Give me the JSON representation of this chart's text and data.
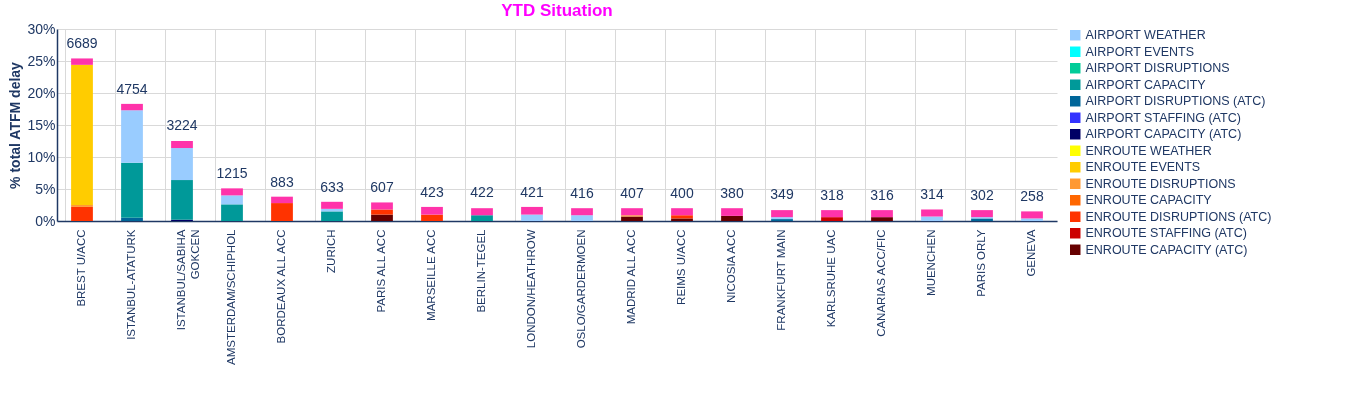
{
  "chart_data": {
    "type": "bar",
    "title": "YTD Situation",
    "ylabel": "% total ATFM delay",
    "stacked": true,
    "grid": true,
    "legend": "right",
    "categories": [
      "BREST U/ACC",
      "ISTANBUL-ATATURK",
      "ISTANBUL/SABIHA GOKCEN",
      "AMSTERDAM/SCHIPHOL",
      "BORDEAUX ALL ACC",
      "ZURICH",
      "PARIS ALL ACC",
      "MARSEILLE ACC",
      "BERLIN-TEGEL",
      "LONDON/HEATHROW",
      "OSLO/GARDERMOEN",
      "MADRID ALL ACC",
      "REIMS U/ACC",
      "NICOSIA ACC",
      "FRANKFURT MAIN",
      "KARLSRUHE UAC",
      "CANARIAS ACC/FIC",
      "MUENCHEN",
      "PARIS ORLY",
      "GENEVA"
    ],
    "ylim": [
      0,
      30
    ],
    "yticks": [
      {
        "value": 0,
        "label": "0%"
      },
      {
        "value": 5,
        "label": "5%"
      },
      {
        "value": 10,
        "label": "10%"
      },
      {
        "value": 15,
        "label": "15%"
      },
      {
        "value": 20,
        "label": "20%"
      },
      {
        "value": 25,
        "label": "25%"
      },
      {
        "value": 30,
        "label": "30%"
      }
    ],
    "annotations": [
      {
        "text": "6689",
        "x": "BREST U/ACC",
        "y": 25.5
      },
      {
        "text": "4754",
        "x": "ISTANBUL-ATATURK",
        "y": 18.3
      },
      {
        "text": "3224",
        "x": "ISTANBUL/SABIHA GOKCEN",
        "y": 12.6
      },
      {
        "text": "1215",
        "x": "AMSTERDAM/SCHIPHOL",
        "y": 5.1
      },
      {
        "text": "883",
        "x": "BORDEAUX ALL ACC",
        "y": 3.8
      },
      {
        "text": "633",
        "x": "ZURICH",
        "y": 3.0
      },
      {
        "text": "607",
        "x": "PARIS ALL ACC",
        "y": 2.9
      },
      {
        "text": "423",
        "x": "MARSEILLE ACC",
        "y": 2.2
      },
      {
        "text": "422",
        "x": "BERLIN-TEGEL",
        "y": 2.2
      },
      {
        "text": "421",
        "x": "LONDON/HEATHROW",
        "y": 2.2
      },
      {
        "text": "416",
        "x": "OSLO/GARDERMOEN",
        "y": 2.0
      },
      {
        "text": "407",
        "x": "MADRID ALL ACC",
        "y": 2.0
      },
      {
        "text": "400",
        "x": "REIMS U/ACC",
        "y": 2.0
      },
      {
        "text": "380",
        "x": "NICOSIA ACC",
        "y": 2.0
      },
      {
        "text": "349",
        "x": "FRANKFURT MAIN",
        "y": 1.9
      },
      {
        "text": "318",
        "x": "KARLSRUHE UAC",
        "y": 1.7
      },
      {
        "text": "316",
        "x": "CANARIAS ACC/FIC",
        "y": 1.7
      },
      {
        "text": "314",
        "x": "MUENCHEN",
        "y": 1.8
      },
      {
        "text": "302",
        "x": "PARIS ORLY",
        "y": 1.7
      },
      {
        "text": "258",
        "x": "GENEVA",
        "y": 1.5
      }
    ],
    "series": [
      {
        "name": "ENROUTE CAPACITY (ATC)",
        "color": "#660000",
        "values": [
          null,
          null,
          null,
          null,
          null,
          null,
          1.0,
          null,
          null,
          null,
          null,
          0.7,
          0.4,
          0.8,
          null,
          null,
          0.6,
          null,
          null,
          null
        ]
      },
      {
        "name": "ENROUTE STAFFING (ATC)",
        "color": "#cc0000",
        "values": [
          null,
          null,
          null,
          null,
          null,
          null,
          null,
          null,
          null,
          null,
          null,
          null,
          null,
          null,
          null,
          0.6,
          null,
          null,
          null,
          null
        ]
      },
      {
        "name": "ENROUTE DISRUPTIONS (ATC)",
        "color": "#ff3300",
        "values": [
          2.2,
          null,
          null,
          null,
          2.8,
          null,
          0.8,
          1.0,
          null,
          null,
          null,
          null,
          0.5,
          null,
          null,
          null,
          null,
          null,
          null,
          null
        ]
      },
      {
        "name": "ENROUTE CAPACITY",
        "color": "#ff6600",
        "values": [
          null,
          null,
          null,
          null,
          null,
          null,
          null,
          null,
          null,
          null,
          null,
          null,
          null,
          null,
          null,
          null,
          null,
          null,
          null,
          null
        ]
      },
      {
        "name": "ENROUTE DISRUPTIONS",
        "color": "#ff9933",
        "values": [
          0.3,
          null,
          null,
          null,
          null,
          null,
          null,
          null,
          null,
          null,
          null,
          0.2,
          null,
          null,
          null,
          null,
          null,
          null,
          null,
          null
        ]
      },
      {
        "name": "ENROUTE EVENTS",
        "color": "#ffcc00",
        "values": [
          21.9,
          null,
          null,
          null,
          null,
          null,
          null,
          null,
          null,
          null,
          null,
          null,
          null,
          null,
          null,
          null,
          null,
          null,
          null,
          null
        ]
      },
      {
        "name": "ENROUTE WEATHER",
        "color": "#ffff00",
        "values": [
          null,
          null,
          null,
          null,
          null,
          null,
          null,
          null,
          null,
          null,
          null,
          null,
          null,
          null,
          null,
          null,
          null,
          null,
          null,
          null
        ]
      },
      {
        "name": "AIRPORT CAPACITY (ATC)",
        "color": "#000066",
        "values": [
          null,
          null,
          0.2,
          null,
          null,
          null,
          null,
          null,
          null,
          null,
          null,
          null,
          null,
          null,
          null,
          null,
          null,
          null,
          null,
          null
        ]
      },
      {
        "name": "AIRPORT STAFFING (ATC)",
        "color": "#3333ff",
        "values": [
          null,
          null,
          null,
          null,
          null,
          null,
          null,
          null,
          null,
          null,
          null,
          null,
          null,
          null,
          null,
          null,
          null,
          null,
          null,
          null
        ]
      },
      {
        "name": "AIRPORT DISRUPTIONS (ATC)",
        "color": "#006699",
        "values": [
          null,
          0.5,
          null,
          null,
          null,
          null,
          null,
          null,
          null,
          null,
          null,
          null,
          null,
          null,
          0.3,
          null,
          null,
          null,
          0.4,
          null
        ]
      },
      {
        "name": "AIRPORT CAPACITY",
        "color": "#009999",
        "values": [
          null,
          8.6,
          6.2,
          2.6,
          null,
          1.5,
          null,
          null,
          0.9,
          null,
          null,
          null,
          null,
          null,
          null,
          null,
          null,
          null,
          null,
          null
        ]
      },
      {
        "name": "AIRPORT DISRUPTIONS",
        "color": "#00cc99",
        "values": [
          null,
          null,
          null,
          null,
          null,
          null,
          null,
          null,
          null,
          null,
          null,
          null,
          null,
          null,
          null,
          null,
          null,
          null,
          null,
          null
        ]
      },
      {
        "name": "AIRPORT EVENTS",
        "color": "#00ffff",
        "values": [
          null,
          null,
          null,
          null,
          null,
          null,
          null,
          null,
          null,
          null,
          null,
          null,
          null,
          null,
          null,
          null,
          null,
          null,
          null,
          null
        ]
      },
      {
        "name": "AIRPORT WEATHER",
        "color": "#99ccff",
        "values": [
          null,
          8.2,
          5.0,
          1.4,
          null,
          0.4,
          null,
          null,
          null,
          1.0,
          0.9,
          null,
          null,
          null,
          0.3,
          null,
          null,
          0.7,
          0.2,
          0.4
        ]
      },
      {
        "color": "#ff33aa",
        "values": [
          1.0,
          1.0,
          1.1,
          1.1,
          1.0,
          1.1,
          1.1,
          1.2,
          1.1,
          1.2,
          1.1,
          1.1,
          1.1,
          1.2,
          1.1,
          1.1,
          1.1,
          1.1,
          1.1,
          1.1
        ]
      }
    ]
  }
}
